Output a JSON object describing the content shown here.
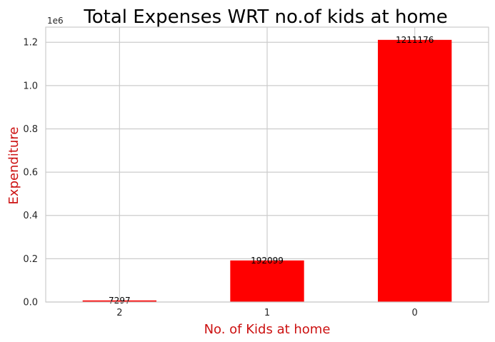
{
  "chart_data": {
    "type": "bar",
    "title": "Total Expenses WRT no.of  kids at home",
    "xlabel": "No. of Kids at home",
    "ylabel": "Expenditure",
    "categories": [
      "2",
      "1",
      "0"
    ],
    "values": [
      7297,
      192099,
      1211176
    ],
    "value_labels": [
      "7297",
      "192099",
      "1211176"
    ],
    "ylim": [
      0,
      1270000
    ],
    "y_ticks": [
      0,
      200000,
      400000,
      600000,
      800000,
      1000000,
      1200000
    ],
    "y_tick_labels": [
      "0.0",
      "0.2",
      "0.4",
      "0.6",
      "0.8",
      "1.0",
      "1.2"
    ],
    "y_offset_label": "1e6",
    "grid": true,
    "legend": "none",
    "colors": {
      "bar": "#ff0000",
      "axis_label": "#cc1111",
      "grid": "#cccccc",
      "spine": "#cccccc"
    }
  }
}
